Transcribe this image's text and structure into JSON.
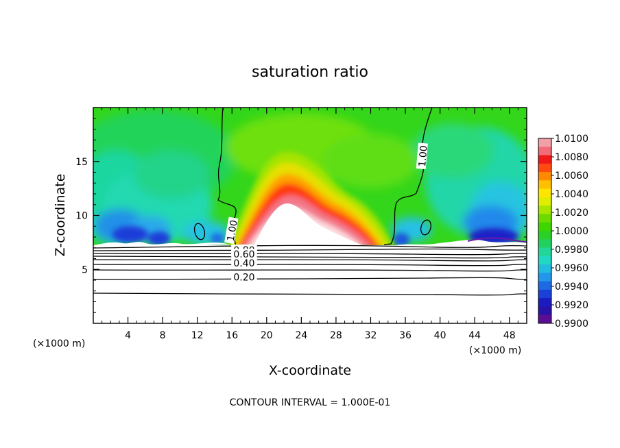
{
  "chart_data": {
    "type": "contour",
    "title": "saturation ratio",
    "xlabel": "X-coordinate",
    "ylabel": "Z-coordinate",
    "x_unit": "(×1000 m)",
    "y_unit": "(×1000 m)",
    "xlim": [
      0,
      50
    ],
    "ylim": [
      0,
      20
    ],
    "x_ticks": [
      4,
      8,
      12,
      16,
      20,
      24,
      28,
      32,
      36,
      40,
      44,
      48
    ],
    "y_ticks": [
      5,
      10,
      15
    ],
    "footer": "CONTOUR INTERVAL = 1.000E-01",
    "colorbar": {
      "levels": [
        "1.0100",
        "1.0080",
        "1.0060",
        "1.0040",
        "1.0020",
        "1.0000",
        "0.9980",
        "0.9960",
        "0.9940",
        "0.9920",
        "0.9900"
      ]
    },
    "contour_labels": [
      {
        "text": "1.00",
        "x": 16.0,
        "z": 8.6,
        "angle": -80
      },
      {
        "text": "1.00",
        "x": 38.0,
        "z": 15.5,
        "angle": -85
      },
      {
        "text": "0.80",
        "x": 17.4,
        "z": 6.8,
        "angle": 0
      },
      {
        "text": "0.60",
        "x": 17.4,
        "z": 6.4,
        "angle": 0
      },
      {
        "text": "0.40",
        "x": 17.4,
        "z": 5.6,
        "angle": 0
      },
      {
        "text": "0.20",
        "x": 17.4,
        "z": 4.3,
        "angle": 0
      }
    ],
    "field_features": {
      "dome_peak_x": 21,
      "dome_peak_z": 12.2,
      "subsaturated_layer_top_z": 7.2,
      "contour_1_00_left_x": 15.2,
      "contour_1_00_right_x": 38.5
    }
  }
}
